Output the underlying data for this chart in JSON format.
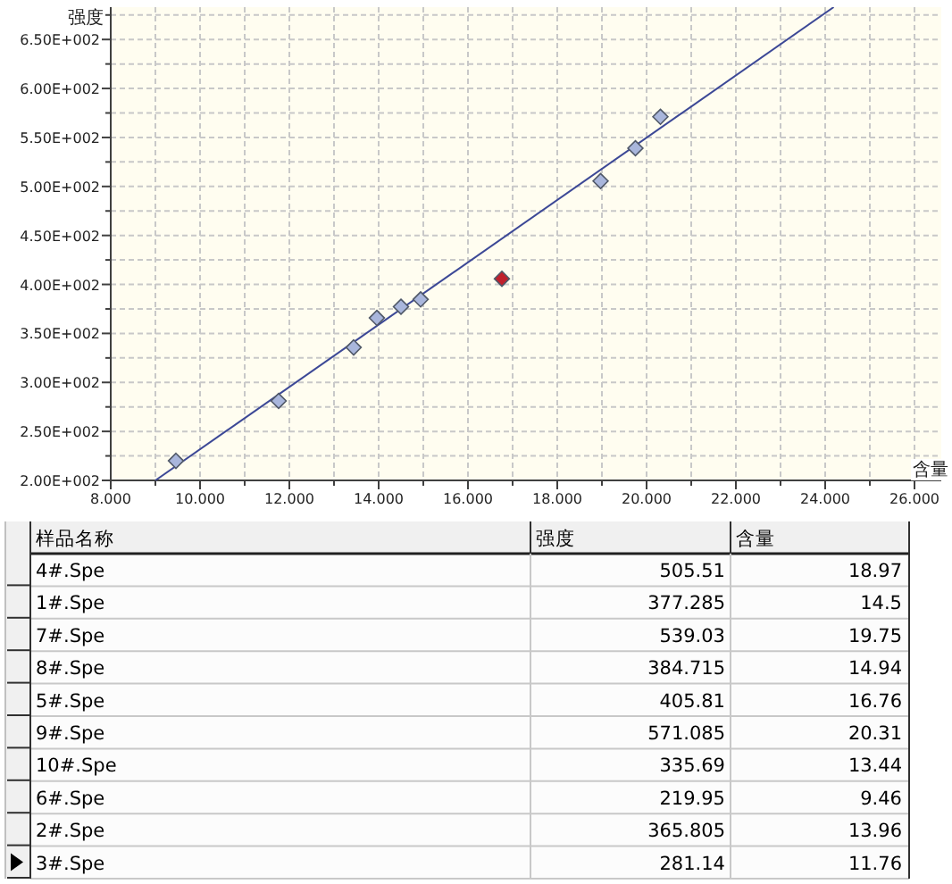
{
  "chart_data": [
    {
      "type": "scatter",
      "xlabel": "含量",
      "ylabel": "强度",
      "marker": "diamond",
      "grid": true,
      "xlim": [
        8,
        26.6
      ],
      "ylim": [
        200,
        683
      ],
      "xticks": [
        {
          "value": 8,
          "label": "8.000"
        },
        {
          "value": 9,
          "label": null
        },
        {
          "value": 10,
          "label": "10.000"
        },
        {
          "value": 11,
          "label": null
        },
        {
          "value": 12,
          "label": "12.000"
        },
        {
          "value": 13,
          "label": null
        },
        {
          "value": 14,
          "label": "14.000"
        },
        {
          "value": 15,
          "label": null
        },
        {
          "value": 16,
          "label": "16.000"
        },
        {
          "value": 17,
          "label": null
        },
        {
          "value": 18,
          "label": "18.000"
        },
        {
          "value": 19,
          "label": null
        },
        {
          "value": 20,
          "label": "20.000"
        },
        {
          "value": 21,
          "label": null
        },
        {
          "value": 22,
          "label": "22.000"
        },
        {
          "value": 23,
          "label": null
        },
        {
          "value": 24,
          "label": "24.000"
        },
        {
          "value": 25,
          "label": null
        },
        {
          "value": 26,
          "label": "26.000"
        }
      ],
      "yticks": [
        {
          "value": 200,
          "label": "2.00E+002"
        },
        {
          "value": 225,
          "label": null
        },
        {
          "value": 250,
          "label": "2.50E+002"
        },
        {
          "value": 275,
          "label": null
        },
        {
          "value": 300,
          "label": "3.00E+002"
        },
        {
          "value": 325,
          "label": null
        },
        {
          "value": 350,
          "label": "3.50E+002"
        },
        {
          "value": 375,
          "label": null
        },
        {
          "value": 400,
          "label": "4.00E+002"
        },
        {
          "value": 425,
          "label": null
        },
        {
          "value": 450,
          "label": "4.50E+002"
        },
        {
          "value": 475,
          "label": null
        },
        {
          "value": 500,
          "label": "5.00E+002"
        },
        {
          "value": 525,
          "label": null
        },
        {
          "value": 550,
          "label": "5.50E+002"
        },
        {
          "value": 575,
          "label": null
        },
        {
          "value": 600,
          "label": "6.00E+002"
        },
        {
          "value": 625,
          "label": null
        },
        {
          "value": 650,
          "label": "6.50E+002"
        },
        {
          "value": 675,
          "label": null
        }
      ],
      "series": [
        {
          "type": "scatter",
          "x": [
            18.97,
            14.5,
            19.75,
            14.94,
            16.76,
            20.31,
            13.44,
            9.46,
            13.96,
            11.76
          ],
          "values": [
            505.51,
            377.285,
            539.03,
            384.715,
            405.81,
            571.085,
            335.69,
            219.95,
            365.805,
            281.14
          ],
          "colors": [
            "#a9b6dc",
            "#a9b6dc",
            "#a9b6dc",
            "#a9b6dc",
            "#c0202c",
            "#a9b6dc",
            "#a9b6dc",
            "#a9b6dc",
            "#a9b6dc",
            "#a9b6dc"
          ]
        },
        {
          "type": "line",
          "x": [
            9.0,
            24.19
          ],
          "values": [
            200,
            683
          ],
          "color": "#3c4896",
          "marker": "none"
        }
      ]
    },
    {
      "type": "other",
      "annotations": [
        "样品名称"
      ],
      "data_labels": true,
      "categories": [
        "4#.Spe",
        "1#.Spe",
        "7#.Spe",
        "8#.Spe",
        "5#.Spe",
        "9#.Spe",
        "10#.Spe",
        "6#.Spe",
        "2#.Spe",
        "3#.Spe"
      ],
      "series": [
        {
          "name": "强度",
          "values": [
            505.51,
            377.285,
            539.03,
            384.715,
            405.81,
            571.085,
            335.69,
            219.95,
            365.805,
            281.14
          ]
        },
        {
          "name": "含量",
          "values": [
            18.97,
            14.5,
            19.75,
            14.94,
            16.76,
            20.31,
            13.44,
            9.46,
            13.96,
            11.76
          ]
        }
      ]
    }
  ]
}
